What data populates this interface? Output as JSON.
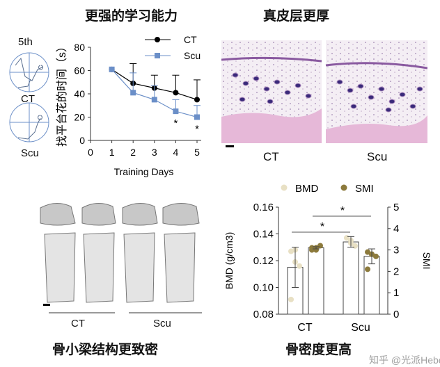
{
  "panels": {
    "learning": {
      "title": "更强的学习能力",
      "maze_day": "5th",
      "maze_labels": [
        "CT",
        "Scu"
      ]
    },
    "skin": {
      "title": "真皮层更厚",
      "labels": [
        "CT",
        "Scu"
      ]
    },
    "bone": {
      "title": "骨小梁结构更致密",
      "labels": [
        "CT",
        "Scu"
      ]
    },
    "density": {
      "title": "骨密度更高"
    }
  },
  "watermark": "知乎 @光派Hebe",
  "chart_data": [
    {
      "type": "line",
      "xlabel": "Training Days",
      "ylabel": "找平台花的时间（s）",
      "xlim": [
        0,
        5
      ],
      "ylim": [
        0,
        80
      ],
      "xticks": [
        "0",
        "1",
        "2",
        "3",
        "4",
        "5"
      ],
      "yticks": [
        "0",
        "20",
        "40",
        "60",
        "80"
      ],
      "legend": "top-right",
      "series": [
        {
          "name": "CT",
          "color": "#000000",
          "x": [
            1,
            2,
            3,
            4,
            5
          ],
          "values": [
            61,
            49,
            45,
            41,
            35
          ],
          "err": [
            0,
            17,
            11,
            15,
            17
          ]
        },
        {
          "name": "Scu",
          "color": "#6b8fc8",
          "x": [
            1,
            2,
            3,
            4,
            5
          ],
          "values": [
            61,
            41,
            35,
            25,
            20
          ],
          "err": [
            0,
            17,
            12,
            10,
            10
          ]
        }
      ],
      "annotations": [
        {
          "x": 4,
          "text": "*"
        },
        {
          "x": 5,
          "text": "*"
        }
      ]
    },
    {
      "type": "bar",
      "categories": [
        "CT",
        "Scu"
      ],
      "ylabel": "BMD (g/cm3)",
      "y2label": "SMI",
      "ylim": [
        0.08,
        0.16
      ],
      "y2lim": [
        0,
        5
      ],
      "yticks": [
        "0.08",
        "0.10",
        "0.12",
        "0.14",
        "0.16"
      ],
      "y2ticks": [
        "0",
        "1",
        "2",
        "3",
        "4",
        "5"
      ],
      "legend": "top",
      "series": [
        {
          "name": "BMD",
          "axis": "left",
          "color": "#e8e0c4",
          "values": [
            0.115,
            0.134
          ],
          "err": [
            0.015,
            0.004
          ],
          "points": [
            [
              0.127,
              0.119,
              0.116,
              0.091,
              0.128
            ],
            [
              0.137,
              0.135,
              0.131,
              0.137,
              0.133
            ]
          ]
        },
        {
          "name": "SMI",
          "axis": "right",
          "color": "#8c7a3c",
          "values": [
            3.1,
            2.7
          ],
          "err": [
            0.05,
            0.35
          ],
          "points": [
            [
              3.0,
              3.1,
              3.2,
              3.1,
              3.0
            ],
            [
              2.9,
              2.8,
              2.7,
              2.1,
              2.8
            ]
          ]
        }
      ],
      "annotations": [
        {
          "between": [
            "CT BMD",
            "Scu BMD"
          ],
          "text": "*"
        },
        {
          "between": [
            "CT SMI",
            "Scu SMI"
          ],
          "text": "*"
        }
      ]
    }
  ]
}
